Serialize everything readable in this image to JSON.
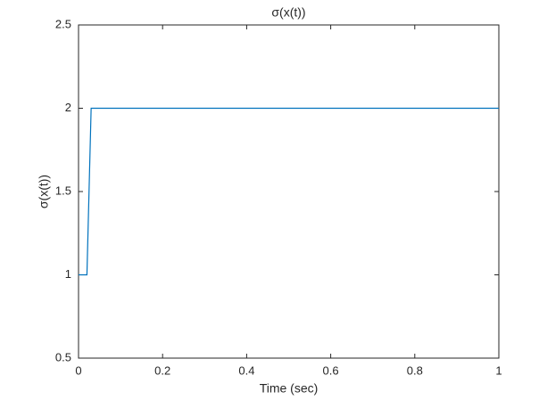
{
  "chart_data": {
    "type": "line",
    "title": "σ(x(t))",
    "x_label": "Time (sec)",
    "y_label": "σ(x(t))",
    "x": [
      0,
      0.02,
      0.03,
      1
    ],
    "series": [
      {
        "name": "σ(x(t))",
        "color": "#0072bd",
        "values": [
          1,
          1,
          2,
          2
        ]
      }
    ],
    "xlim": [
      0,
      1
    ],
    "xticks": [
      0,
      0.2,
      0.4,
      0.6,
      0.8,
      1
    ],
    "ylim": [
      0.5,
      2.5
    ],
    "yticks": [
      0.5,
      1,
      1.5,
      2,
      2.5
    ],
    "grid": false
  }
}
